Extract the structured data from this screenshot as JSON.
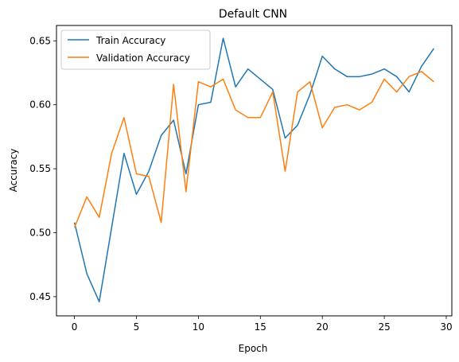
{
  "chart_data": {
    "type": "line",
    "title": "Default CNN",
    "xlabel": "Epoch",
    "ylabel": "Accuracy",
    "xlim": [
      -1.45,
      30.45
    ],
    "ylim": [
      0.435,
      0.662
    ],
    "xticks": [
      0,
      5,
      10,
      15,
      20,
      25,
      30
    ],
    "yticks": [
      0.45,
      0.5,
      0.55,
      0.6,
      0.65
    ],
    "xtick_labels": [
      "0",
      "5",
      "10",
      "15",
      "20",
      "25",
      "30"
    ],
    "ytick_labels": [
      "0.45",
      "0.50",
      "0.55",
      "0.60",
      "0.65"
    ],
    "grid": false,
    "legend_position": "top-left",
    "x": [
      0,
      1,
      2,
      3,
      4,
      5,
      6,
      7,
      8,
      9,
      10,
      11,
      12,
      13,
      14,
      15,
      16,
      17,
      18,
      19,
      20,
      21,
      22,
      23,
      24,
      25,
      26,
      27,
      28,
      29
    ],
    "series": [
      {
        "name": "Train Accuracy",
        "color": "#1f77b4",
        "values": [
          0.508,
          0.468,
          0.446,
          0.504,
          0.562,
          0.53,
          0.548,
          0.576,
          0.588,
          0.546,
          0.6,
          0.602,
          0.652,
          0.614,
          0.628,
          0.62,
          0.612,
          0.574,
          0.584,
          0.608,
          0.638,
          0.628,
          0.622,
          0.622,
          0.624,
          0.628,
          0.622,
          0.61,
          0.63,
          0.644
        ]
      },
      {
        "name": "Validation Accuracy",
        "color": "#ff7f0e",
        "values": [
          0.504,
          0.528,
          0.512,
          0.562,
          0.59,
          0.546,
          0.544,
          0.508,
          0.616,
          0.532,
          0.618,
          0.614,
          0.62,
          0.596,
          0.59,
          0.59,
          0.61,
          0.548,
          0.61,
          0.618,
          0.582,
          0.598,
          0.6,
          0.596,
          0.602,
          0.62,
          0.61,
          0.622,
          0.626,
          0.618
        ]
      }
    ]
  }
}
